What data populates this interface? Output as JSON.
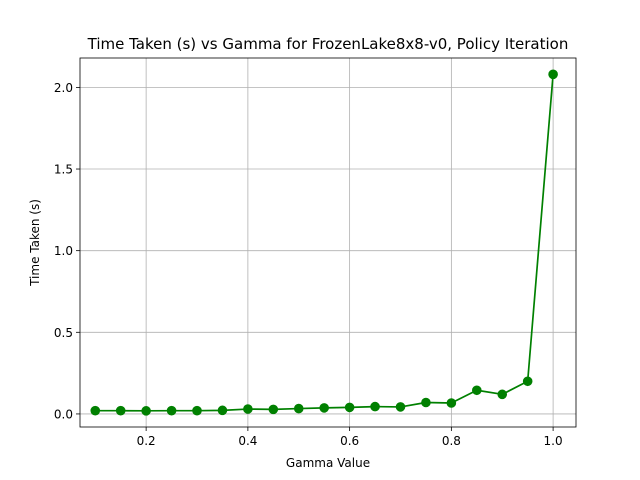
{
  "chart_data": {
    "type": "line",
    "title": "Time Taken (s) vs Gamma for FrozenLake8x8-v0, Policy Iteration",
    "xlabel": "Gamma Value",
    "ylabel": "Time Taken (s)",
    "xlim": [
      0.07,
      1.045
    ],
    "ylim": [
      -0.08,
      2.18
    ],
    "xticks": [
      0.2,
      0.4,
      0.6,
      0.8,
      1.0
    ],
    "xtick_labels": [
      "0.2",
      "0.4",
      "0.6",
      "0.8",
      "1.0"
    ],
    "yticks": [
      0.0,
      0.5,
      1.0,
      1.5,
      2.0
    ],
    "ytick_labels": [
      "0.0",
      "0.5",
      "1.0",
      "1.5",
      "2.0"
    ],
    "grid": true,
    "series": [
      {
        "color": "#008000",
        "marker": "circle",
        "x": [
          0.1,
          0.15,
          0.2,
          0.25,
          0.3,
          0.35,
          0.4,
          0.45,
          0.5,
          0.55,
          0.6,
          0.65,
          0.7,
          0.75,
          0.8,
          0.85,
          0.9,
          0.95,
          1.0
        ],
        "y": [
          0.02,
          0.02,
          0.019,
          0.02,
          0.02,
          0.022,
          0.03,
          0.028,
          0.033,
          0.037,
          0.04,
          0.045,
          0.043,
          0.07,
          0.067,
          0.145,
          0.12,
          0.2,
          2.08
        ]
      }
    ]
  }
}
